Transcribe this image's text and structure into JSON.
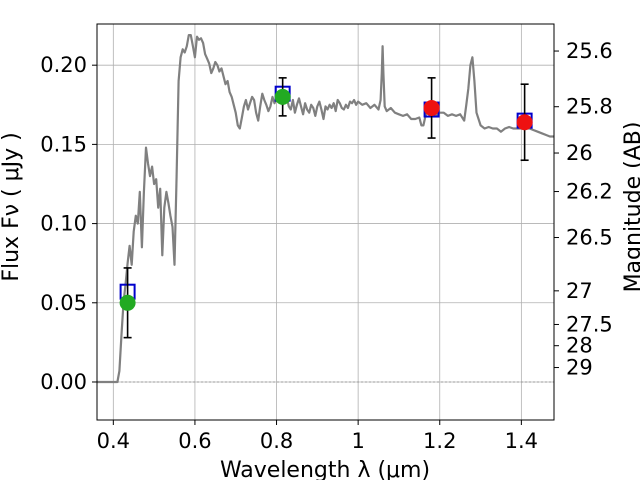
{
  "chart_data": {
    "type": "line",
    "xlabel": "Wavelength  λ (μm)",
    "ylabel": "Flux  Fν  ( μJy )",
    "y2label": "Magnitude (AB)",
    "xlim": [
      0.36,
      1.48
    ],
    "ylim": [
      -0.024,
      0.226
    ],
    "grid": true,
    "x_ticks": [
      0.4,
      0.6,
      0.8,
      1.0,
      1.2,
      1.4
    ],
    "x_tick_labels": [
      "0.4",
      "0.6",
      "0.8",
      "1",
      "1.2",
      "1.4"
    ],
    "y_ticks": [
      0.0,
      0.05,
      0.1,
      0.15,
      0.2
    ],
    "y_tick_labels": [
      "0.00",
      "0.05",
      "0.10",
      "0.15",
      "0.20"
    ],
    "y2_ticks": [
      {
        "label": "25.6",
        "mag": 25.6
      },
      {
        "label": "25.8",
        "mag": 25.8
      },
      {
        "label": "26",
        "mag": 26.0
      },
      {
        "label": "26.2",
        "mag": 26.2
      },
      {
        "label": "26.5",
        "mag": 26.5
      },
      {
        "label": "27",
        "mag": 27.0
      },
      {
        "label": "27.5",
        "mag": 27.5
      },
      {
        "label": "28",
        "mag": 28.0
      },
      {
        "label": "29",
        "mag": 29.0
      }
    ],
    "colors": {
      "sed": "#808080",
      "model_box": "#0000cc",
      "obs_green": "#22aa22",
      "obs_red": "#ee1111",
      "grid": "#b0b0b0",
      "zero_line": "#999999"
    },
    "series": [
      {
        "role": "sed",
        "points": [
          [
            0.36,
            0.0
          ],
          [
            0.41,
            0.0
          ],
          [
            0.415,
            0.007
          ],
          [
            0.42,
            0.03
          ],
          [
            0.425,
            0.05
          ],
          [
            0.43,
            0.062
          ],
          [
            0.435,
            0.075
          ],
          [
            0.44,
            0.086
          ],
          [
            0.445,
            0.074
          ],
          [
            0.45,
            0.095
          ],
          [
            0.455,
            0.105
          ],
          [
            0.46,
            0.1
          ],
          [
            0.465,
            0.12
          ],
          [
            0.47,
            0.085
          ],
          [
            0.475,
            0.12
          ],
          [
            0.48,
            0.148
          ],
          [
            0.485,
            0.138
          ],
          [
            0.49,
            0.13
          ],
          [
            0.495,
            0.136
          ],
          [
            0.5,
            0.125
          ],
          [
            0.505,
            0.128
          ],
          [
            0.51,
            0.11
          ],
          [
            0.515,
            0.122
          ],
          [
            0.52,
            0.08
          ],
          [
            0.525,
            0.11
          ],
          [
            0.53,
            0.12
          ],
          [
            0.535,
            0.113
          ],
          [
            0.54,
            0.105
          ],
          [
            0.545,
            0.098
          ],
          [
            0.55,
            0.074
          ],
          [
            0.555,
            0.13
          ],
          [
            0.56,
            0.19
          ],
          [
            0.565,
            0.205
          ],
          [
            0.57,
            0.21
          ],
          [
            0.575,
            0.208
          ],
          [
            0.58,
            0.212
          ],
          [
            0.585,
            0.219
          ],
          [
            0.59,
            0.219
          ],
          [
            0.595,
            0.212
          ],
          [
            0.6,
            0.205
          ],
          [
            0.605,
            0.218
          ],
          [
            0.61,
            0.216
          ],
          [
            0.615,
            0.217
          ],
          [
            0.62,
            0.214
          ],
          [
            0.625,
            0.207
          ],
          [
            0.63,
            0.204
          ],
          [
            0.635,
            0.201
          ],
          [
            0.64,
            0.195
          ],
          [
            0.645,
            0.198
          ],
          [
            0.65,
            0.202
          ],
          [
            0.655,
            0.2
          ],
          [
            0.66,
            0.196
          ],
          [
            0.665,
            0.198
          ],
          [
            0.67,
            0.193
          ],
          [
            0.675,
            0.188
          ],
          [
            0.68,
            0.19
          ],
          [
            0.685,
            0.183
          ],
          [
            0.69,
            0.18
          ],
          [
            0.695,
            0.175
          ],
          [
            0.7,
            0.17
          ],
          [
            0.705,
            0.162
          ],
          [
            0.71,
            0.16
          ],
          [
            0.715,
            0.167
          ],
          [
            0.72,
            0.174
          ],
          [
            0.725,
            0.178
          ],
          [
            0.73,
            0.172
          ],
          [
            0.735,
            0.176
          ],
          [
            0.74,
            0.18
          ],
          [
            0.745,
            0.178
          ],
          [
            0.75,
            0.17
          ],
          [
            0.755,
            0.165
          ],
          [
            0.76,
            0.174
          ],
          [
            0.765,
            0.182
          ],
          [
            0.77,
            0.178
          ],
          [
            0.775,
            0.175
          ],
          [
            0.78,
            0.171
          ],
          [
            0.785,
            0.174
          ],
          [
            0.79,
            0.18
          ],
          [
            0.795,
            0.176
          ],
          [
            0.8,
            0.179
          ],
          [
            0.805,
            0.183
          ],
          [
            0.81,
            0.18
          ],
          [
            0.815,
            0.175
          ],
          [
            0.82,
            0.178
          ],
          [
            0.825,
            0.18
          ],
          [
            0.83,
            0.174
          ],
          [
            0.835,
            0.172
          ],
          [
            0.84,
            0.178
          ],
          [
            0.845,
            0.17
          ],
          [
            0.85,
            0.175
          ],
          [
            0.855,
            0.179
          ],
          [
            0.86,
            0.174
          ],
          [
            0.865,
            0.169
          ],
          [
            0.87,
            0.176
          ],
          [
            0.875,
            0.172
          ],
          [
            0.88,
            0.17
          ],
          [
            0.885,
            0.175
          ],
          [
            0.89,
            0.173
          ],
          [
            0.895,
            0.168
          ],
          [
            0.9,
            0.174
          ],
          [
            0.905,
            0.177
          ],
          [
            0.91,
            0.172
          ],
          [
            0.915,
            0.166
          ],
          [
            0.92,
            0.174
          ],
          [
            0.925,
            0.172
          ],
          [
            0.93,
            0.175
          ],
          [
            0.935,
            0.173
          ],
          [
            0.94,
            0.176
          ],
          [
            0.945,
            0.171
          ],
          [
            0.95,
            0.178
          ],
          [
            0.955,
            0.176
          ],
          [
            0.96,
            0.173
          ],
          [
            0.965,
            0.172
          ],
          [
            0.97,
            0.175
          ],
          [
            0.975,
            0.173
          ],
          [
            0.98,
            0.177
          ],
          [
            0.985,
            0.176
          ],
          [
            0.99,
            0.178
          ],
          [
            0.995,
            0.175
          ],
          [
            1.0,
            0.177
          ],
          [
            1.01,
            0.175
          ],
          [
            1.02,
            0.176
          ],
          [
            1.03,
            0.173
          ],
          [
            1.04,
            0.175
          ],
          [
            1.05,
            0.172
          ],
          [
            1.055,
            0.178
          ],
          [
            1.058,
            0.195
          ],
          [
            1.06,
            0.212
          ],
          [
            1.062,
            0.195
          ],
          [
            1.065,
            0.174
          ],
          [
            1.07,
            0.171
          ],
          [
            1.08,
            0.173
          ],
          [
            1.09,
            0.17
          ],
          [
            1.1,
            0.169
          ],
          [
            1.11,
            0.168
          ],
          [
            1.12,
            0.169
          ],
          [
            1.13,
            0.166
          ],
          [
            1.14,
            0.166
          ],
          [
            1.15,
            0.167
          ],
          [
            1.155,
            0.162
          ],
          [
            1.16,
            0.162
          ],
          [
            1.165,
            0.168
          ],
          [
            1.17,
            0.171
          ],
          [
            1.18,
            0.17
          ],
          [
            1.19,
            0.168
          ],
          [
            1.2,
            0.17
          ],
          [
            1.21,
            0.17
          ],
          [
            1.22,
            0.168
          ],
          [
            1.23,
            0.169
          ],
          [
            1.24,
            0.168
          ],
          [
            1.25,
            0.169
          ],
          [
            1.26,
            0.165
          ],
          [
            1.265,
            0.175
          ],
          [
            1.27,
            0.185
          ],
          [
            1.275,
            0.2
          ],
          [
            1.28,
            0.205
          ],
          [
            1.285,
            0.19
          ],
          [
            1.29,
            0.17
          ],
          [
            1.3,
            0.162
          ],
          [
            1.31,
            0.16
          ],
          [
            1.32,
            0.161
          ],
          [
            1.33,
            0.16
          ],
          [
            1.34,
            0.16
          ],
          [
            1.35,
            0.158
          ],
          [
            1.36,
            0.16
          ],
          [
            1.37,
            0.161
          ],
          [
            1.38,
            0.16
          ],
          [
            1.39,
            0.16
          ],
          [
            1.4,
            0.16
          ],
          [
            1.41,
            0.16
          ],
          [
            1.42,
            0.16
          ],
          [
            1.43,
            0.159
          ],
          [
            1.44,
            0.158
          ],
          [
            1.45,
            0.157
          ],
          [
            1.46,
            0.156
          ],
          [
            1.47,
            0.155
          ],
          [
            1.48,
            0.155
          ]
        ]
      },
      {
        "role": "model-photometry",
        "marker": "square",
        "points": [
          [
            0.435,
            0.057
          ],
          [
            0.815,
            0.182
          ],
          [
            1.18,
            0.172
          ],
          [
            1.408,
            0.165
          ]
        ]
      },
      {
        "role": "observed",
        "marker": "circle",
        "points": [
          {
            "x": 0.435,
            "y": 0.05,
            "err": 0.022,
            "color": "green"
          },
          {
            "x": 0.815,
            "y": 0.18,
            "err": 0.012,
            "color": "green"
          },
          {
            "x": 1.18,
            "y": 0.173,
            "err": 0.019,
            "color": "red"
          },
          {
            "x": 1.408,
            "y": 0.164,
            "err": 0.024,
            "color": "red"
          }
        ]
      }
    ]
  }
}
